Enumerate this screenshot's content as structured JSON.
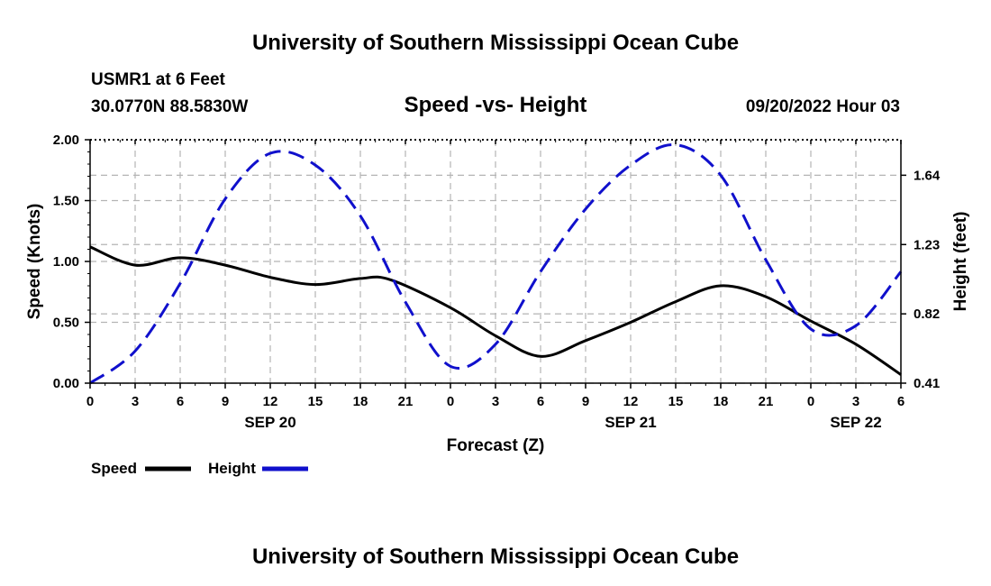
{
  "page": {
    "title": "University of Southern Mississippi Ocean Cube",
    "footer_title": "University of Southern Mississippi Ocean Cube"
  },
  "station": {
    "name": "USMR1 at 6 Feet",
    "coords": "30.0770N  88.5830W",
    "date": "09/20/2022 Hour 03"
  },
  "chart_data": {
    "type": "line",
    "title": "Speed -vs- Height",
    "xlabel": "Forecast (Z)",
    "ylabel": "Speed (Knots)",
    "y2label": "Height (feet)",
    "x_unit": "hours from 09/20/2022 00Z",
    "xlim": [
      0,
      54
    ],
    "ylim": [
      0,
      2.0
    ],
    "y2lim": [
      0.41,
      1.85
    ],
    "x_ticks": [
      0,
      3,
      6,
      9,
      12,
      15,
      18,
      21,
      24,
      27,
      30,
      33,
      36,
      39,
      42,
      45,
      48,
      51,
      54
    ],
    "x_tick_labels": [
      "0",
      "3",
      "6",
      "9",
      "12",
      "15",
      "18",
      "21",
      "0",
      "3",
      "6",
      "9",
      "12",
      "15",
      "18",
      "21",
      "0",
      "3",
      "6"
    ],
    "date_labels": [
      {
        "x": 12,
        "label": "SEP 20"
      },
      {
        "x": 36,
        "label": "SEP 21"
      },
      {
        "x": 51,
        "label": "SEP 22"
      }
    ],
    "y_ticks": [
      0,
      0.5,
      1.0,
      1.5,
      2.0
    ],
    "y_tick_labels": [
      "0.00",
      "0.50",
      "1.00",
      "1.50",
      "2.00"
    ],
    "y2_ticks": [
      0.41,
      0.82,
      1.23,
      1.64
    ],
    "y2_tick_labels": [
      "0.41",
      "0.82",
      "1.23",
      "1.64"
    ],
    "grid": true,
    "legend_position": "bottom-left",
    "series": [
      {
        "name": "Speed",
        "axis": "left",
        "color": "#000000",
        "style": "solid",
        "x": [
          0,
          3,
          6,
          9,
          12,
          15,
          18,
          20,
          24,
          27,
          30,
          33,
          36,
          39,
          42,
          45,
          48,
          51,
          54
        ],
        "values": [
          1.12,
          0.97,
          1.03,
          0.97,
          0.87,
          0.81,
          0.86,
          0.85,
          0.62,
          0.39,
          0.22,
          0.35,
          0.5,
          0.67,
          0.8,
          0.71,
          0.51,
          0.32,
          0.07
        ]
      },
      {
        "name": "Height",
        "axis": "right",
        "color": "#1010cc",
        "style": "dashed",
        "x": [
          0,
          3,
          6,
          9,
          12,
          15,
          18,
          21,
          24,
          27,
          30,
          33,
          36,
          39,
          42,
          45,
          48,
          51,
          54
        ],
        "values": [
          0.41,
          0.6,
          1.0,
          1.5,
          1.77,
          1.7,
          1.4,
          0.89,
          0.51,
          0.64,
          1.07,
          1.44,
          1.7,
          1.82,
          1.64,
          1.14,
          0.73,
          0.75,
          1.07
        ]
      }
    ]
  },
  "legend": {
    "speed_label": "Speed",
    "height_label": "Height"
  }
}
